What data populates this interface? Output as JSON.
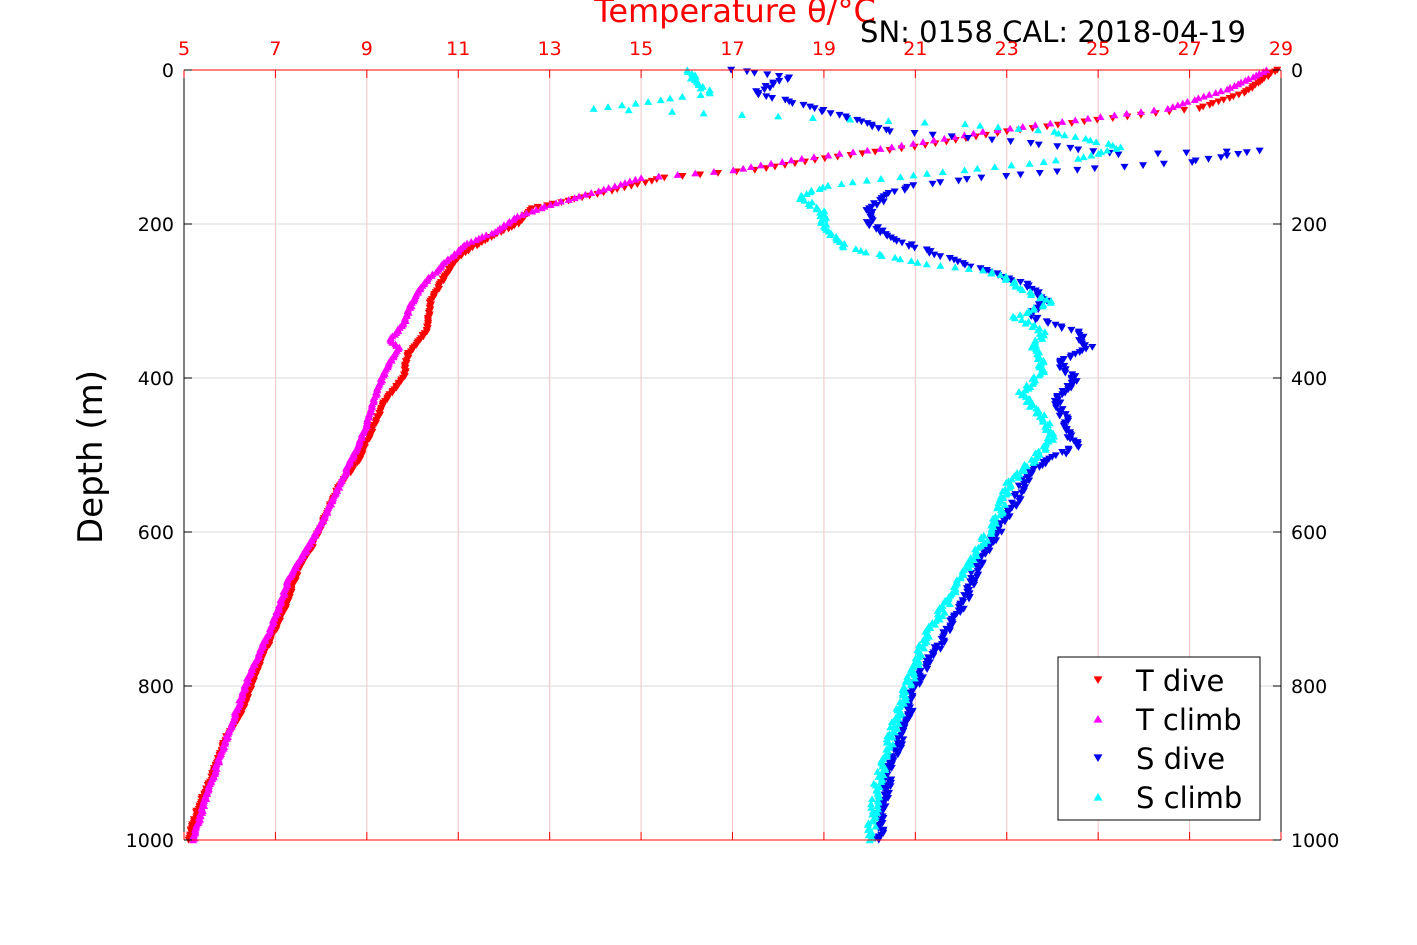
{
  "header": {
    "top_axis_title": "Temperature θ/°C",
    "serial_cal": "SN: 0158  CAL: 2018-04-19",
    "ylabel": "Depth (m)"
  },
  "chart_data": {
    "type": "scatter",
    "title": "SN: 0158  CAL: 2018-04-19",
    "x_top_label": "Temperature θ/°C",
    "ylabel": "Depth (m)",
    "xlim": [
      5,
      29
    ],
    "ylim": [
      0,
      1000
    ],
    "y_reversed": true,
    "grid": true,
    "legend_position": "bottom-right",
    "x_ticks": [
      5,
      7,
      9,
      11,
      13,
      15,
      17,
      19,
      21,
      23,
      25,
      27,
      29
    ],
    "y_ticks": [
      0,
      200,
      400,
      600,
      800,
      1000
    ],
    "axis_color": "#ff0000",
    "series": [
      {
        "name": "T dive",
        "color": "#ff0000",
        "marker": "triangle-down",
        "points": [
          [
            28.9,
            0
          ],
          [
            28.2,
            30
          ],
          [
            27.2,
            50
          ],
          [
            25.0,
            65
          ],
          [
            23.0,
            80
          ],
          [
            21.0,
            100
          ],
          [
            19.0,
            115
          ],
          [
            17.5,
            130
          ],
          [
            15.5,
            140
          ],
          [
            14.5,
            155
          ],
          [
            13.4,
            170
          ],
          [
            12.6,
            180
          ],
          [
            12.3,
            200
          ],
          [
            11.8,
            215
          ],
          [
            11.2,
            235
          ],
          [
            10.9,
            250
          ],
          [
            10.6,
            280
          ],
          [
            10.4,
            300
          ],
          [
            10.3,
            340
          ],
          [
            9.9,
            370
          ],
          [
            9.8,
            400
          ],
          [
            9.4,
            430
          ],
          [
            9.1,
            470
          ],
          [
            8.8,
            510
          ],
          [
            8.4,
            540
          ],
          [
            8.1,
            580
          ],
          [
            7.8,
            620
          ],
          [
            7.5,
            650
          ],
          [
            7.2,
            700
          ],
          [
            6.9,
            740
          ],
          [
            6.6,
            780
          ],
          [
            6.3,
            830
          ],
          [
            5.9,
            870
          ],
          [
            5.6,
            920
          ],
          [
            5.3,
            960
          ],
          [
            5.1,
            1000
          ]
        ]
      },
      {
        "name": "T climb",
        "color": "#ff00ff",
        "marker": "triangle-up",
        "points": [
          [
            28.7,
            0
          ],
          [
            27.8,
            25
          ],
          [
            26.5,
            50
          ],
          [
            24.5,
            65
          ],
          [
            22.5,
            80
          ],
          [
            20.5,
            100
          ],
          [
            18.5,
            115
          ],
          [
            17.0,
            130
          ],
          [
            15.0,
            140
          ],
          [
            14.2,
            155
          ],
          [
            13.0,
            175
          ],
          [
            12.3,
            190
          ],
          [
            11.8,
            210
          ],
          [
            11.2,
            225
          ],
          [
            10.7,
            250
          ],
          [
            10.2,
            280
          ],
          [
            10.0,
            300
          ],
          [
            9.8,
            330
          ],
          [
            9.5,
            350
          ],
          [
            9.7,
            360
          ],
          [
            9.4,
            390
          ],
          [
            9.2,
            420
          ],
          [
            9.0,
            460
          ],
          [
            8.7,
            500
          ],
          [
            8.4,
            540
          ],
          [
            8.0,
            590
          ],
          [
            7.7,
            620
          ],
          [
            7.3,
            660
          ],
          [
            7.0,
            710
          ],
          [
            6.7,
            750
          ],
          [
            6.4,
            790
          ],
          [
            6.1,
            840
          ],
          [
            5.8,
            890
          ],
          [
            5.5,
            940
          ],
          [
            5.2,
            1000
          ]
        ]
      },
      {
        "name": "S dive",
        "color": "#0000ee",
        "marker": "triangle-down",
        "points": [
          [
            17.0,
            0
          ],
          [
            18.2,
            10
          ],
          [
            17.5,
            30
          ],
          [
            18.8,
            50
          ],
          [
            20.5,
            80
          ],
          [
            23.5,
            95
          ],
          [
            25.5,
            110
          ],
          [
            28.5,
            105
          ],
          [
            27.0,
            120
          ],
          [
            24.5,
            130
          ],
          [
            22.5,
            140
          ],
          [
            21.0,
            150
          ],
          [
            20.5,
            160
          ],
          [
            20.0,
            180
          ],
          [
            20.0,
            200
          ],
          [
            20.5,
            220
          ],
          [
            21.5,
            240
          ],
          [
            22.5,
            260
          ],
          [
            23.5,
            280
          ],
          [
            23.8,
            300
          ],
          [
            23.5,
            320
          ],
          [
            24.5,
            340
          ],
          [
            24.8,
            360
          ],
          [
            24.1,
            380
          ],
          [
            24.5,
            400
          ],
          [
            24.1,
            430
          ],
          [
            24.3,
            460
          ],
          [
            24.5,
            490
          ],
          [
            23.5,
            520
          ],
          [
            23.2,
            560
          ],
          [
            22.8,
            600
          ],
          [
            22.4,
            640
          ],
          [
            22.0,
            700
          ],
          [
            21.5,
            750
          ],
          [
            21.0,
            800
          ],
          [
            20.8,
            850
          ],
          [
            20.5,
            900
          ],
          [
            20.3,
            950
          ],
          [
            20.2,
            1000
          ]
        ]
      },
      {
        "name": "S climb",
        "color": "#00ffff",
        "marker": "triangle-up",
        "points": [
          [
            16.0,
            0
          ],
          [
            16.5,
            30
          ],
          [
            14.0,
            50
          ],
          [
            18.0,
            60
          ],
          [
            22.0,
            70
          ],
          [
            24.0,
            80
          ],
          [
            25.5,
            100
          ],
          [
            24.5,
            115
          ],
          [
            22.0,
            130
          ],
          [
            19.0,
            150
          ],
          [
            18.5,
            165
          ],
          [
            19.0,
            185
          ],
          [
            19.0,
            205
          ],
          [
            19.5,
            230
          ],
          [
            21.0,
            250
          ],
          [
            22.5,
            260
          ],
          [
            23.0,
            270
          ],
          [
            23.5,
            290
          ],
          [
            24.0,
            300
          ],
          [
            23.2,
            320
          ],
          [
            23.8,
            340
          ],
          [
            23.6,
            360
          ],
          [
            23.8,
            390
          ],
          [
            23.3,
            420
          ],
          [
            23.8,
            450
          ],
          [
            24.0,
            480
          ],
          [
            23.5,
            510
          ],
          [
            23.0,
            540
          ],
          [
            22.8,
            580
          ],
          [
            22.4,
            620
          ],
          [
            22.0,
            660
          ],
          [
            21.6,
            700
          ],
          [
            21.2,
            740
          ],
          [
            20.9,
            790
          ],
          [
            20.6,
            840
          ],
          [
            20.4,
            880
          ],
          [
            20.2,
            920
          ],
          [
            20.1,
            960
          ],
          [
            20.0,
            1000
          ]
        ]
      }
    ]
  }
}
